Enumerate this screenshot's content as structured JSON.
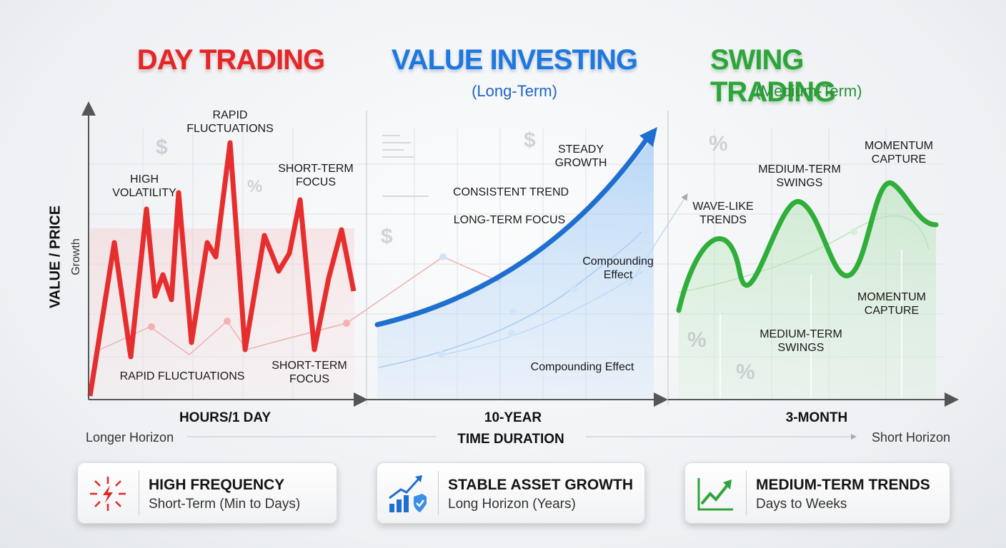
{
  "sections": [
    {
      "title": "DAY TRADING",
      "x_label": "HOURS/1 DAY",
      "annotations": [
        {
          "lines": [
            "RAPID",
            "FLUCTUATIONS"
          ]
        },
        {
          "lines": [
            "HIGH",
            "VOLATILITY"
          ]
        },
        {
          "lines": [
            "SHORT-TERM",
            "FOCUS"
          ]
        },
        {
          "lines": [
            "RAPID FLUCTUATIONS"
          ]
        },
        {
          "lines": [
            "SHORT-TERM",
            "FOCUS"
          ]
        }
      ]
    },
    {
      "title": "VALUE INVESTING",
      "subtitle": "(Long-Term)",
      "x_label": "10-YEAR",
      "annotations": [
        {
          "lines": [
            "STEADY",
            "GROWTH"
          ]
        },
        {
          "lines": [
            "CONSISTENT TREND"
          ]
        },
        {
          "lines": [
            "LONG-TERM FOCUS"
          ]
        },
        {
          "lines": [
            "Compounding",
            "Effect"
          ]
        },
        {
          "lines": [
            "Compounding Effect"
          ]
        }
      ]
    },
    {
      "title": "SWING TRADING",
      "subtitle": "(Medium-Term)",
      "x_label": "3-MONTH",
      "annotations": [
        {
          "lines": [
            "MOMENTUM",
            "CAPTURE"
          ]
        },
        {
          "lines": [
            "MEDIUM-TERM",
            "SWINGS"
          ]
        },
        {
          "lines": [
            "WAVE-LIKE",
            "TRENDS"
          ]
        },
        {
          "lines": [
            "MOMENTUM",
            "CAPTURE"
          ]
        },
        {
          "lines": [
            "MEDIUM-TERM",
            "SWINGS"
          ]
        }
      ]
    }
  ],
  "y_axis": {
    "label": "VALUE / PRICE",
    "sublabel": "Growth"
  },
  "x_axis": {
    "title": "TIME DURATION",
    "left": "Longer Horizon",
    "right": "Short Horizon"
  },
  "symbols": {
    "dollar": "$",
    "percent": "%"
  },
  "cards": [
    {
      "title": "HIGH FREQUENCY",
      "subtitle": "Short-Term (Min to Days)"
    },
    {
      "title": "STABLE ASSET GROWTH",
      "subtitle": "Long Horizon (Years)"
    },
    {
      "title": "MEDIUM-TERM TRENDS",
      "subtitle": "Days to Weeks"
    }
  ]
}
